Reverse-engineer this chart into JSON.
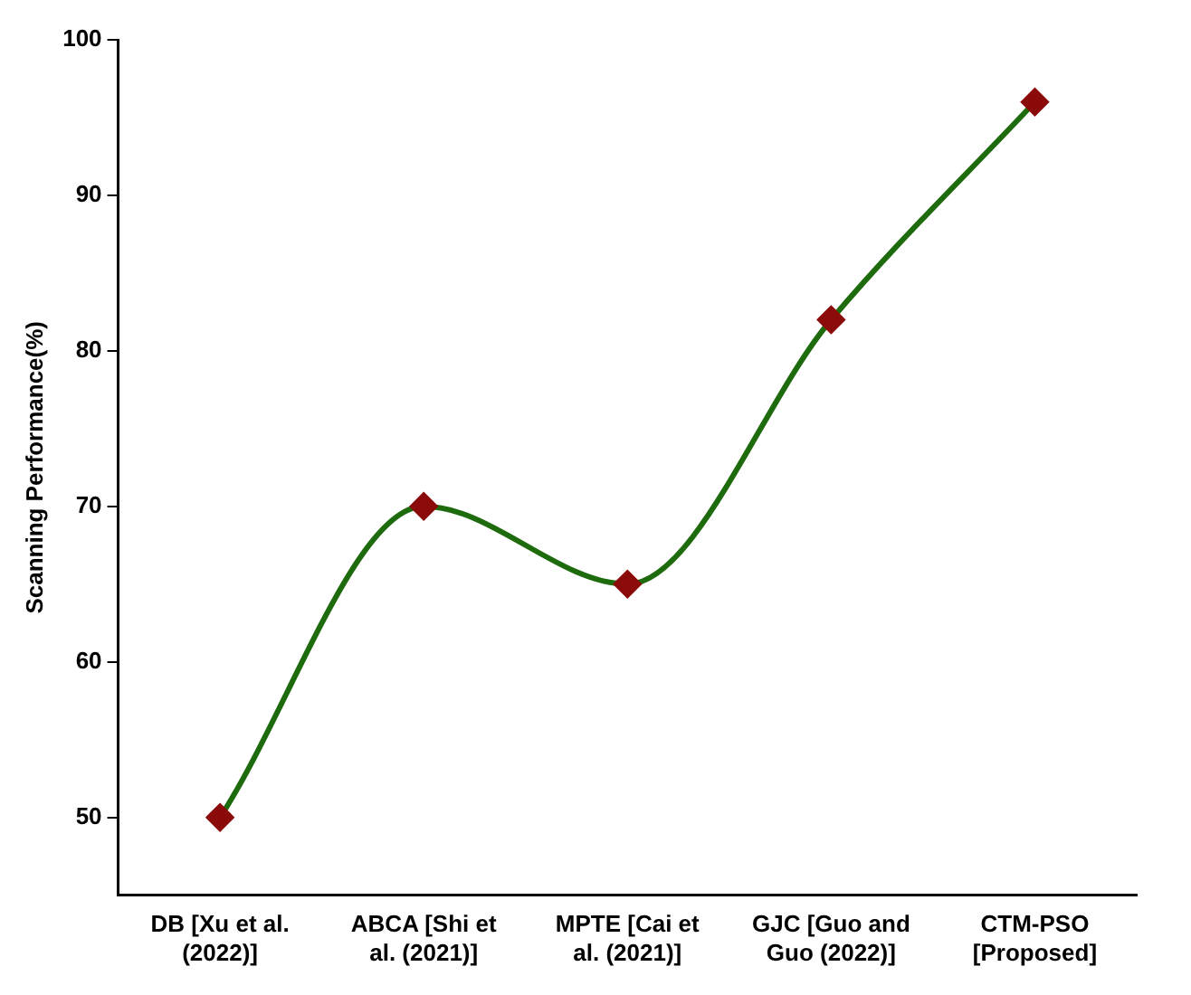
{
  "chart_data": {
    "type": "line",
    "ylabel": "Scanning Performance(%)",
    "categories": [
      "DB [Xu et al. (2022)]",
      "ABCA [Shi et al. (2021)]",
      "MPTE [Cai et al. (2021)]",
      "GJC [Guo and Guo (2022)]",
      "CTM-PSO [Proposed]"
    ],
    "series": [
      {
        "color": "#1e6b0e",
        "colors": [
          "#8b0a0a",
          "#8b0a0a",
          "#8b0a0a",
          "#8b0a0a",
          "#8b0a0a"
        ],
        "values": [
          50,
          70,
          65,
          82,
          96
        ]
      }
    ],
    "ylim": [
      45,
      100
    ],
    "yticks": [
      50,
      60,
      70,
      80,
      90,
      100
    ],
    "grid": false,
    "legend": false,
    "marker": "diamond",
    "line_style": "solid"
  }
}
